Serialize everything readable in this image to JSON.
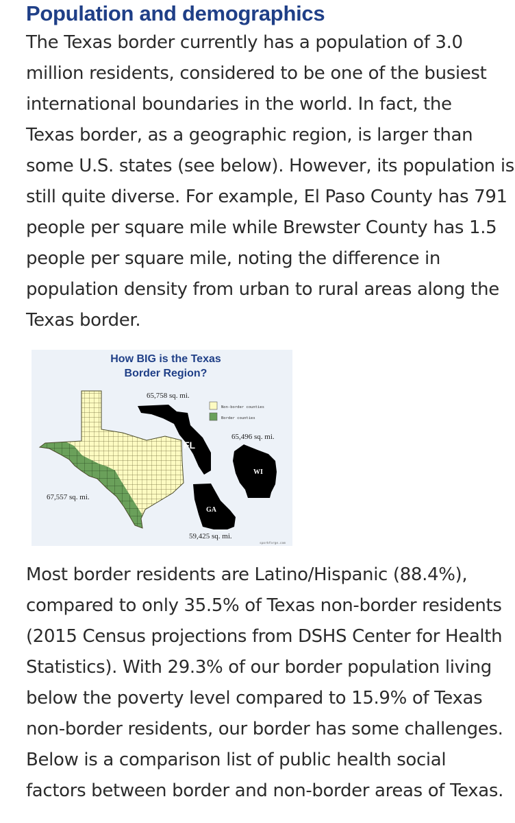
{
  "heading": "Population and demographics",
  "paragraph1": [
    "The Texas border currently has a population of 3.0",
    "million residents, considered to be one of the busiest",
    "international boundaries in the world. In fact, the",
    "Texas border, as a geographic region, is larger than",
    "some U.S. states (see below). However, its population is",
    "still quite diverse. For example, El Paso County has 791",
    "people per square mile while Brewster County has 1.5",
    "people per square mile, noting the difference in",
    "population density from urban to rural areas along the",
    "Texas border."
  ],
  "infographic": {
    "title_line1": "How BIG is the Texas",
    "title_line2": "Border Region?",
    "legend": {
      "non_border": "Non-border counties",
      "border": "Border counties"
    },
    "labels": {
      "texas_border_area": "67,557 sq. mi.",
      "florida_area": "65,758 sq. mi.",
      "florida_abbr": "FL",
      "wisconsin_area": "65,496 sq. mi.",
      "wisconsin_abbr": "WI",
      "georgia_area": "59,425 sq. mi.",
      "georgia_abbr": "GA",
      "credit": "sporkforge.com"
    },
    "colors": {
      "non_border_fill": "#fdfbc2",
      "border_fill": "#6aa05a",
      "state_fill": "#000000",
      "background": "#edf2f8",
      "title": "#1f3f87"
    }
  },
  "paragraph2": [
    "Most border residents are Latino/Hispanic (88.4%),",
    "compared to only 35.5% of Texas non-border residents",
    "(2015 Census projections from DSHS Center for Health",
    "Statistics).  With 29.3% of our border population living",
    "below the poverty level compared to 15.9% of Texas",
    "non-border residents, our border has some challenges.",
    "Below is a comparison list of public health social",
    "factors between border and non-border areas of Texas."
  ]
}
